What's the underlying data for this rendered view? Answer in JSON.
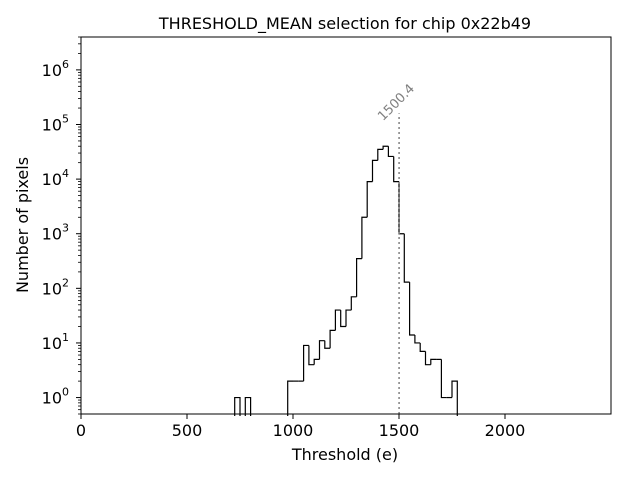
{
  "chart_data": {
    "type": "histogram",
    "title": "THRESHOLD_MEAN selection for chip 0x22b49",
    "xlabel": "Threshold (e)",
    "ylabel": "Number of pixels",
    "xlim": [
      0,
      2500
    ],
    "ylim": [
      0.5,
      4000000
    ],
    "yscale": "log",
    "grid": false,
    "x_ticks": [
      0,
      500,
      1000,
      1500,
      2000
    ],
    "x_tick_labels": [
      "0",
      "500",
      "1000",
      "1500",
      "2000"
    ],
    "y_ticks": [
      1,
      10,
      100,
      1000,
      10000,
      100000,
      1000000
    ],
    "y_tick_labels": [
      "10^0",
      "10^1",
      "10^2",
      "10^3",
      "10^4",
      "10^5",
      "10^6"
    ],
    "bin_width": 25,
    "bins": [
      {
        "x0": 725,
        "x1": 750,
        "count": 1
      },
      {
        "x0": 775,
        "x1": 800,
        "count": 1
      },
      {
        "x0": 975,
        "x1": 1000,
        "count": 2
      },
      {
        "x0": 1000,
        "x1": 1025,
        "count": 2
      },
      {
        "x0": 1025,
        "x1": 1050,
        "count": 2
      },
      {
        "x0": 1050,
        "x1": 1075,
        "count": 9
      },
      {
        "x0": 1075,
        "x1": 1100,
        "count": 4
      },
      {
        "x0": 1100,
        "x1": 1125,
        "count": 5
      },
      {
        "x0": 1125,
        "x1": 1150,
        "count": 11
      },
      {
        "x0": 1150,
        "x1": 1175,
        "count": 8
      },
      {
        "x0": 1175,
        "x1": 1200,
        "count": 17
      },
      {
        "x0": 1200,
        "x1": 1225,
        "count": 40
      },
      {
        "x0": 1225,
        "x1": 1250,
        "count": 20
      },
      {
        "x0": 1250,
        "x1": 1275,
        "count": 40
      },
      {
        "x0": 1275,
        "x1": 1300,
        "count": 70
      },
      {
        "x0": 1300,
        "x1": 1325,
        "count": 350
      },
      {
        "x0": 1325,
        "x1": 1350,
        "count": 2000
      },
      {
        "x0": 1350,
        "x1": 1375,
        "count": 9000
      },
      {
        "x0": 1375,
        "x1": 1400,
        "count": 22000
      },
      {
        "x0": 1400,
        "x1": 1425,
        "count": 35000
      },
      {
        "x0": 1425,
        "x1": 1450,
        "count": 40000
      },
      {
        "x0": 1450,
        "x1": 1475,
        "count": 26000
      },
      {
        "x0": 1475,
        "x1": 1500,
        "count": 9000
      },
      {
        "x0": 1500,
        "x1": 1525,
        "count": 1000
      },
      {
        "x0": 1525,
        "x1": 1550,
        "count": 130
      },
      {
        "x0": 1550,
        "x1": 1575,
        "count": 14
      },
      {
        "x0": 1575,
        "x1": 1600,
        "count": 10
      },
      {
        "x0": 1600,
        "x1": 1625,
        "count": 7
      },
      {
        "x0": 1625,
        "x1": 1650,
        "count": 4
      },
      {
        "x0": 1650,
        "x1": 1675,
        "count": 5
      },
      {
        "x0": 1675,
        "x1": 1700,
        "count": 5
      },
      {
        "x0": 1700,
        "x1": 1725,
        "count": 1
      },
      {
        "x0": 1725,
        "x1": 1750,
        "count": 1
      },
      {
        "x0": 1750,
        "x1": 1775,
        "count": 2
      }
    ],
    "marker": {
      "x": 1500.4,
      "label": "1500.4",
      "y_top": 160000,
      "style": "dotted",
      "color": "#808080"
    },
    "colors": {
      "histogram_line": "#000000",
      "marker_line": "#808080"
    }
  }
}
